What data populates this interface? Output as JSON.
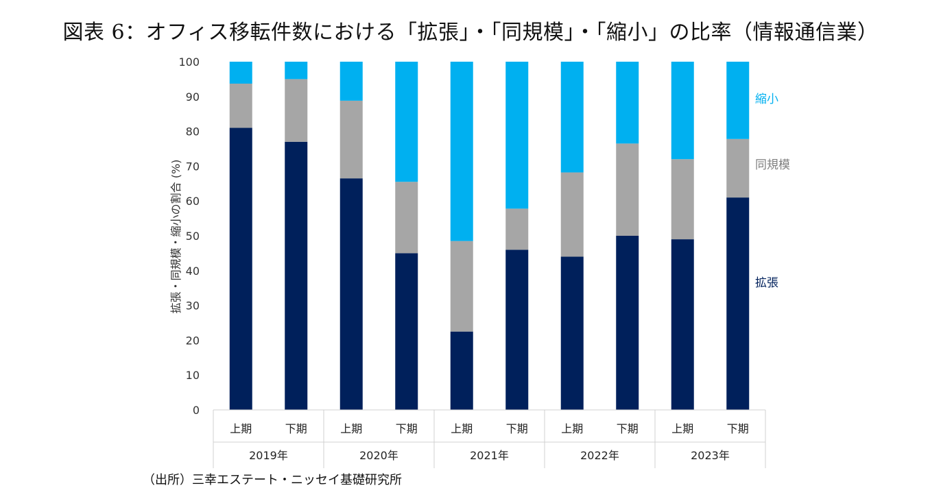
{
  "chart_data": {
    "type": "bar",
    "stacked": true,
    "title": "図表 6：オフィス移転件数における「拡張」・「同規模」・「縮小」の比率（情報通信業）",
    "ylabel": "拡張・同規模・縮小の割合 (%)",
    "xlabel": "",
    "ylim": [
      0,
      100
    ],
    "yticks": [
      0,
      10,
      20,
      30,
      40,
      50,
      60,
      70,
      80,
      90,
      100
    ],
    "years": [
      "2019年",
      "2020年",
      "2021年",
      "2022年",
      "2023年"
    ],
    "categories": [
      "上期",
      "下期",
      "上期",
      "下期",
      "上期",
      "下期",
      "上期",
      "下期",
      "上期",
      "下期"
    ],
    "series": [
      {
        "name": "拡張",
        "color": "#00205b",
        "values": [
          81,
          77,
          66.5,
          45,
          22.5,
          46,
          44,
          50,
          49,
          61
        ]
      },
      {
        "name": "同規模",
        "color": "#a6a6a6",
        "values": [
          12.7,
          18,
          22.3,
          20.5,
          26,
          11.8,
          24.2,
          26.5,
          23,
          16.8
        ]
      },
      {
        "name": "縮小",
        "color": "#00b0f0",
        "values": [
          6.3,
          5,
          11.2,
          34.5,
          51.5,
          42.2,
          31.8,
          23.5,
          28,
          22.2
        ]
      }
    ],
    "legend_placement": "right-inline"
  },
  "source": "（出所）三幸エステート・ニッセイ基礎研究所"
}
